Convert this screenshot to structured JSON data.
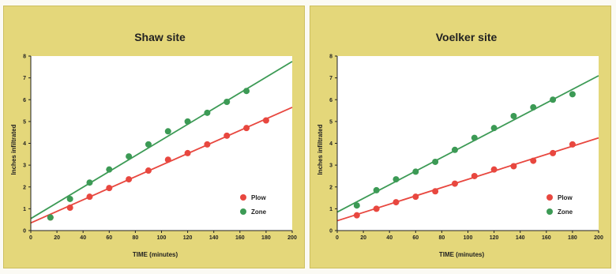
{
  "colors": {
    "panel_bg": "#e4d77a",
    "plot_bg": "#ffffff",
    "plow": "#e8473f",
    "zone": "#3c9a55",
    "plow_line": "#e5524a",
    "zone_line": "#3c9f56"
  },
  "chart_data": [
    {
      "type": "scatter",
      "title": "Shaw site",
      "xlabel": "TIME (minutes)",
      "ylabel": "Inches infiltrated",
      "xlim": [
        0,
        200
      ],
      "ylim": [
        0,
        8
      ],
      "xticks": [
        0,
        20,
        40,
        60,
        80,
        100,
        120,
        140,
        160,
        180,
        200
      ],
      "yticks": [
        0,
        1,
        2,
        3,
        4,
        5,
        6,
        7,
        8
      ],
      "grid": false,
      "legend_position": "bottom-right",
      "series": [
        {
          "name": "Plow",
          "color": "#e8473f",
          "x": [
            15,
            30,
            45,
            60,
            75,
            90,
            105,
            120,
            135,
            150,
            165,
            180
          ],
          "y": [
            0.6,
            1.05,
            1.55,
            1.95,
            2.35,
            2.75,
            3.25,
            3.55,
            3.95,
            4.35,
            4.7,
            5.05
          ],
          "trendline": [
            [
              0,
              0.35
            ],
            [
              200,
              5.65
            ]
          ]
        },
        {
          "name": "Zone",
          "color": "#3c9a55",
          "x": [
            15,
            30,
            45,
            60,
            75,
            90,
            105,
            120,
            135,
            150,
            165
          ],
          "y": [
            0.6,
            1.45,
            2.2,
            2.8,
            3.4,
            3.95,
            4.55,
            5.0,
            5.4,
            5.9,
            6.4
          ],
          "trendline": [
            [
              0,
              0.55
            ],
            [
              200,
              7.75
            ]
          ]
        }
      ]
    },
    {
      "type": "scatter",
      "title": "Voelker site",
      "xlabel": "TIME (minutes)",
      "ylabel": "Inches infiltrated",
      "xlim": [
        0,
        200
      ],
      "ylim": [
        0,
        8
      ],
      "xticks": [
        0,
        20,
        40,
        60,
        80,
        100,
        120,
        140,
        160,
        180,
        200
      ],
      "yticks": [
        0,
        1,
        2,
        3,
        4,
        5,
        6,
        7,
        8
      ],
      "grid": false,
      "legend_position": "bottom-right",
      "series": [
        {
          "name": "Plow",
          "color": "#e8473f",
          "x": [
            15,
            30,
            45,
            60,
            75,
            90,
            105,
            120,
            135,
            150,
            165,
            180
          ],
          "y": [
            0.7,
            1.0,
            1.3,
            1.55,
            1.8,
            2.15,
            2.5,
            2.8,
            2.95,
            3.2,
            3.55,
            3.95
          ],
          "trendline": [
            [
              0,
              0.45
            ],
            [
              200,
              4.25
            ]
          ]
        },
        {
          "name": "Zone",
          "color": "#3c9a55",
          "x": [
            15,
            30,
            45,
            60,
            75,
            90,
            105,
            120,
            135,
            150,
            165,
            180
          ],
          "y": [
            1.15,
            1.85,
            2.35,
            2.7,
            3.15,
            3.7,
            4.25,
            4.7,
            5.25,
            5.65,
            6.0,
            6.25
          ],
          "trendline": [
            [
              0,
              0.85
            ],
            [
              200,
              7.1
            ]
          ]
        }
      ]
    }
  ]
}
